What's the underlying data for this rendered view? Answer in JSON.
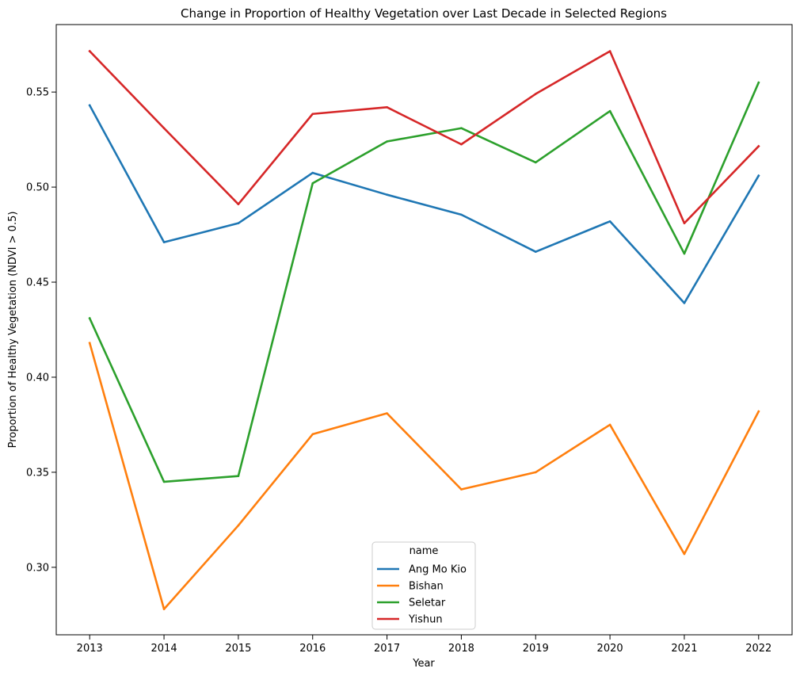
{
  "chart_data": {
    "type": "line",
    "title": "Change in Proportion of Healthy Vegetation over Last Decade in Selected Regions",
    "xlabel": "Year",
    "ylabel": "Proportion of Healthy Vegetation (NDVI > 0.5)",
    "x": [
      "2013",
      "2014",
      "2015",
      "2016",
      "2017",
      "2018",
      "2019",
      "2020",
      "2021",
      "2022"
    ],
    "x_numeric": [
      2013,
      2014,
      2015,
      2016,
      2017,
      2018,
      2019,
      2020,
      2021,
      2022
    ],
    "xlim": [
      2012.55,
      2022.45
    ],
    "ylim": [
      0.2645,
      0.5855
    ],
    "yticks": [
      0.3,
      0.35,
      0.4,
      0.45,
      0.5,
      0.55
    ],
    "ytick_labels": [
      "0.30",
      "0.35",
      "0.40",
      "0.45",
      "0.50",
      "0.55"
    ],
    "grid": false,
    "legend": {
      "title": "name",
      "placement": "lower-center"
    },
    "series": [
      {
        "name": "Ang Mo Kio",
        "color": "#1f77b4",
        "values": [
          0.543,
          0.471,
          0.481,
          0.5075,
          0.496,
          0.4855,
          0.466,
          0.482,
          0.439,
          0.506
        ]
      },
      {
        "name": "Bishan",
        "color": "#ff7f0e",
        "values": [
          0.418,
          0.278,
          0.322,
          0.37,
          0.381,
          0.341,
          0.35,
          0.375,
          0.307,
          0.382
        ]
      },
      {
        "name": "Seletar",
        "color": "#2ca02c",
        "values": [
          0.431,
          0.345,
          0.348,
          0.502,
          0.524,
          0.531,
          0.513,
          0.54,
          0.465,
          0.555
        ]
      },
      {
        "name": "Yishun",
        "color": "#d62728",
        "values": [
          0.5715,
          0.531,
          0.491,
          0.5385,
          0.542,
          0.5225,
          0.549,
          0.5715,
          0.481,
          0.5215
        ]
      }
    ]
  }
}
